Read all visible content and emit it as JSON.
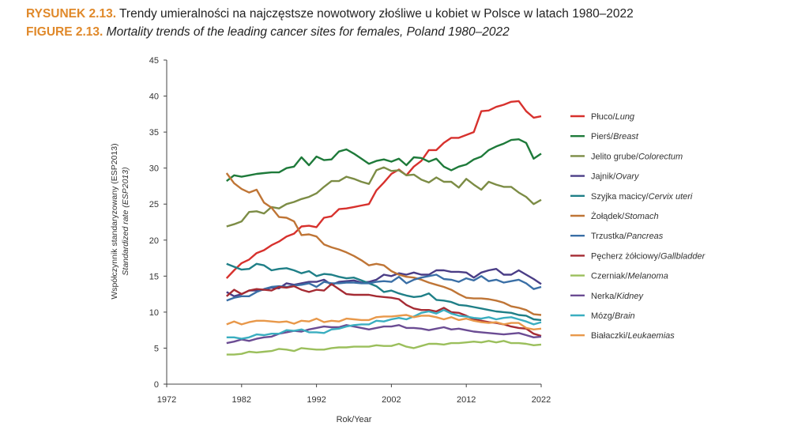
{
  "title_pl": {
    "label": "RYSUNEK 2.13.",
    "text": "Trendy umieralności na najczęstsze nowotwory złośliwe u kobiet w Polsce w latach 1980–2022"
  },
  "title_en": {
    "label": "FIGURE 2.13.",
    "text": "Mortality trends of the leading cancer sites for females, Poland 1980–2022"
  },
  "chart_data": {
    "type": "line",
    "xlabel": "Rok/Year",
    "ylabel_pl": "Współczynnik standaryzowany (ESP2013)",
    "ylabel_en": "Standardized rate (ESP2013)",
    "xlim": [
      1972,
      2022
    ],
    "ylim": [
      0,
      45
    ],
    "xticks": [
      1972,
      1982,
      1992,
      2002,
      2012,
      2022
    ],
    "yticks": [
      0,
      5,
      10,
      15,
      20,
      25,
      30,
      35,
      40,
      45
    ],
    "grid": false,
    "legend_position": "right",
    "x_start": 1980,
    "series": [
      {
        "name_pl": "Płuco/",
        "name_en": "Lung",
        "color": "#d7312d",
        "values": [
          14.7,
          15.8,
          16.8,
          17.3,
          18.2,
          18.6,
          19.3,
          19.8,
          20.5,
          20.9,
          21.9,
          22.0,
          21.8,
          23.1,
          23.3,
          24.3,
          24.4,
          24.6,
          24.8,
          25.0,
          26.9,
          28.0,
          29.2,
          29.8,
          29.0,
          30.2,
          31.0,
          32.5,
          32.5,
          33.5,
          34.2,
          34.2,
          34.6,
          35.0,
          37.9,
          38.0,
          38.5,
          38.8,
          39.2,
          39.3,
          37.9,
          37.0,
          37.2
        ]
      },
      {
        "name_pl": "Pierś/",
        "name_en": "Breast",
        "color": "#1e7a3a",
        "values": [
          28.2,
          29.0,
          28.8,
          29.0,
          29.2,
          29.3,
          29.4,
          29.4,
          30.0,
          30.2,
          31.5,
          30.4,
          31.6,
          31.1,
          31.2,
          32.3,
          32.6,
          32.0,
          31.3,
          30.6,
          31.0,
          31.2,
          30.9,
          31.3,
          30.4,
          31.5,
          31.4,
          30.9,
          31.3,
          30.2,
          29.7,
          30.2,
          30.5,
          31.2,
          31.6,
          32.5,
          33.0,
          33.4,
          33.9,
          34.0,
          33.5,
          31.3,
          32.0
        ]
      },
      {
        "name_pl": "Jelito grube/",
        "name_en": "Colorectum",
        "color": "#7c8c45",
        "values": [
          21.9,
          22.2,
          22.6,
          23.9,
          24.0,
          23.7,
          24.6,
          24.4,
          25.0,
          25.3,
          25.7,
          26.0,
          26.5,
          27.4,
          28.2,
          28.2,
          28.8,
          28.5,
          28.1,
          27.8,
          29.7,
          30.1,
          29.6,
          29.7,
          29.0,
          29.1,
          28.4,
          28.0,
          28.7,
          28.1,
          28.1,
          27.3,
          28.5,
          27.7,
          27.0,
          28.1,
          27.7,
          27.4,
          27.4,
          26.6,
          26.0,
          25.0,
          25.6
        ]
      },
      {
        "name_pl": "Jajnik/",
        "name_en": "Ovary",
        "color": "#4a3d86",
        "values": [
          12.8,
          12.2,
          12.5,
          13.0,
          13.0,
          13.1,
          13.4,
          13.3,
          14.0,
          13.8,
          14.0,
          14.2,
          14.2,
          14.5,
          13.8,
          14.2,
          14.3,
          14.4,
          14.1,
          14.2,
          14.5,
          15.2,
          15.0,
          15.4,
          15.2,
          15.5,
          15.2,
          15.2,
          15.8,
          15.8,
          15.6,
          15.6,
          15.5,
          14.8,
          15.5,
          15.8,
          16.0,
          15.2,
          15.2,
          15.8,
          15.2,
          14.6,
          13.9
        ]
      },
      {
        "name_pl": "Szyjka macicy/",
        "name_en": "Cervix uteri",
        "color": "#1f7f87",
        "values": [
          16.7,
          16.3,
          15.9,
          16.0,
          16.7,
          16.5,
          15.8,
          16.0,
          16.1,
          15.8,
          15.4,
          15.7,
          15.0,
          15.3,
          15.2,
          14.9,
          14.7,
          14.8,
          14.4,
          14.0,
          13.6,
          12.8,
          13.0,
          12.6,
          12.3,
          12.1,
          12.2,
          12.6,
          11.7,
          11.6,
          11.4,
          11.0,
          10.9,
          10.7,
          10.5,
          10.3,
          10.1,
          10.0,
          9.9,
          9.6,
          9.5,
          9.0,
          8.9
        ]
      },
      {
        "name_pl": "Żołądek/",
        "name_en": "Stomach",
        "color": "#bf7536",
        "values": [
          29.3,
          27.9,
          27.1,
          26.6,
          27.0,
          25.2,
          24.5,
          23.2,
          23.1,
          22.6,
          20.7,
          20.8,
          20.5,
          19.4,
          19.0,
          18.7,
          18.3,
          17.8,
          17.2,
          16.5,
          16.7,
          16.5,
          15.7,
          15.2,
          14.9,
          14.8,
          14.5,
          14.1,
          13.8,
          13.5,
          13.1,
          12.5,
          12.0,
          11.9,
          11.9,
          11.8,
          11.6,
          11.3,
          10.8,
          10.6,
          10.3,
          9.7,
          9.6
        ]
      },
      {
        "name_pl": "Trzustka/",
        "name_en": "Pancreas",
        "color": "#3a6fa6",
        "values": [
          11.6,
          12.0,
          12.2,
          12.2,
          12.8,
          13.2,
          13.5,
          13.6,
          13.5,
          13.7,
          13.8,
          14.0,
          13.5,
          14.2,
          14.0,
          14.0,
          14.1,
          14.1,
          14.0,
          14.0,
          14.2,
          14.3,
          14.2,
          14.9,
          14.0,
          14.5,
          14.8,
          15.0,
          15.2,
          14.6,
          14.5,
          14.2,
          14.7,
          14.4,
          15.0,
          14.3,
          14.5,
          14.1,
          14.3,
          14.5,
          14.0,
          13.2,
          13.5
        ]
      },
      {
        "name_pl": "Pęcherz żółciowy/",
        "name_en": "Gallbladder",
        "color": "#a52b33",
        "values": [
          12.2,
          13.1,
          12.5,
          13.0,
          13.2,
          13.1,
          13.0,
          13.5,
          13.4,
          13.6,
          13.1,
          12.8,
          13.1,
          13.0,
          13.9,
          13.2,
          12.5,
          12.4,
          12.4,
          12.4,
          12.2,
          12.1,
          12.0,
          11.8,
          11.0,
          10.5,
          10.3,
          10.3,
          10.1,
          10.6,
          10.0,
          9.9,
          9.5,
          9.0,
          8.8,
          8.6,
          8.5,
          8.3,
          8.0,
          7.8,
          7.7,
          7.0,
          6.7
        ]
      },
      {
        "name_pl": "Czerniak/",
        "name_en": "Melanoma",
        "color": "#9bbf5c",
        "values": [
          4.1,
          4.1,
          4.2,
          4.5,
          4.4,
          4.5,
          4.6,
          4.9,
          4.8,
          4.6,
          5.0,
          4.9,
          4.8,
          4.8,
          5.0,
          5.1,
          5.1,
          5.2,
          5.2,
          5.2,
          5.4,
          5.3,
          5.3,
          5.6,
          5.2,
          5.0,
          5.3,
          5.6,
          5.6,
          5.5,
          5.7,
          5.7,
          5.8,
          5.9,
          5.8,
          6.0,
          5.8,
          6.0,
          5.7,
          5.7,
          5.6,
          5.4,
          5.5
        ]
      },
      {
        "name_pl": "Nerka/",
        "name_en": "Kidney",
        "color": "#6b4c93",
        "values": [
          5.7,
          5.9,
          6.2,
          6.0,
          6.3,
          6.5,
          6.6,
          7.0,
          7.2,
          7.4,
          7.3,
          7.6,
          7.8,
          8.0,
          7.9,
          7.9,
          8.2,
          8.0,
          7.8,
          7.6,
          7.8,
          8.0,
          8.0,
          8.2,
          7.8,
          7.8,
          7.7,
          7.5,
          7.7,
          7.9,
          7.6,
          7.7,
          7.5,
          7.3,
          7.2,
          7.1,
          7.0,
          6.9,
          7.0,
          7.1,
          6.8,
          6.5,
          6.6
        ]
      },
      {
        "name_pl": "Mózg/",
        "name_en": "Brain",
        "color": "#3aaec0",
        "values": [
          6.5,
          6.5,
          6.3,
          6.5,
          6.9,
          6.8,
          7.0,
          7.0,
          7.5,
          7.4,
          7.6,
          7.2,
          7.2,
          7.1,
          7.6,
          7.7,
          8.0,
          8.2,
          8.3,
          8.3,
          8.8,
          8.7,
          9.0,
          9.2,
          9.0,
          9.4,
          9.9,
          10.1,
          9.8,
          10.3,
          9.8,
          9.5,
          9.4,
          9.2,
          9.1,
          9.3,
          9.0,
          9.2,
          9.3,
          9.0,
          8.7,
          8.3,
          8.6
        ]
      },
      {
        "name_pl": "Białaczki/",
        "name_en": "Leukaemias",
        "color": "#e8984a",
        "values": [
          8.3,
          8.7,
          8.3,
          8.6,
          8.8,
          8.8,
          8.7,
          8.6,
          8.7,
          8.4,
          8.8,
          8.7,
          9.1,
          8.6,
          8.8,
          8.7,
          9.1,
          9.0,
          8.9,
          8.9,
          9.3,
          9.4,
          9.4,
          9.5,
          9.6,
          9.3,
          9.5,
          9.5,
          9.3,
          9.0,
          9.3,
          8.9,
          9.1,
          8.8,
          8.6,
          8.5,
          8.6,
          8.3,
          8.5,
          8.5,
          7.8,
          7.6,
          7.7
        ]
      }
    ]
  }
}
